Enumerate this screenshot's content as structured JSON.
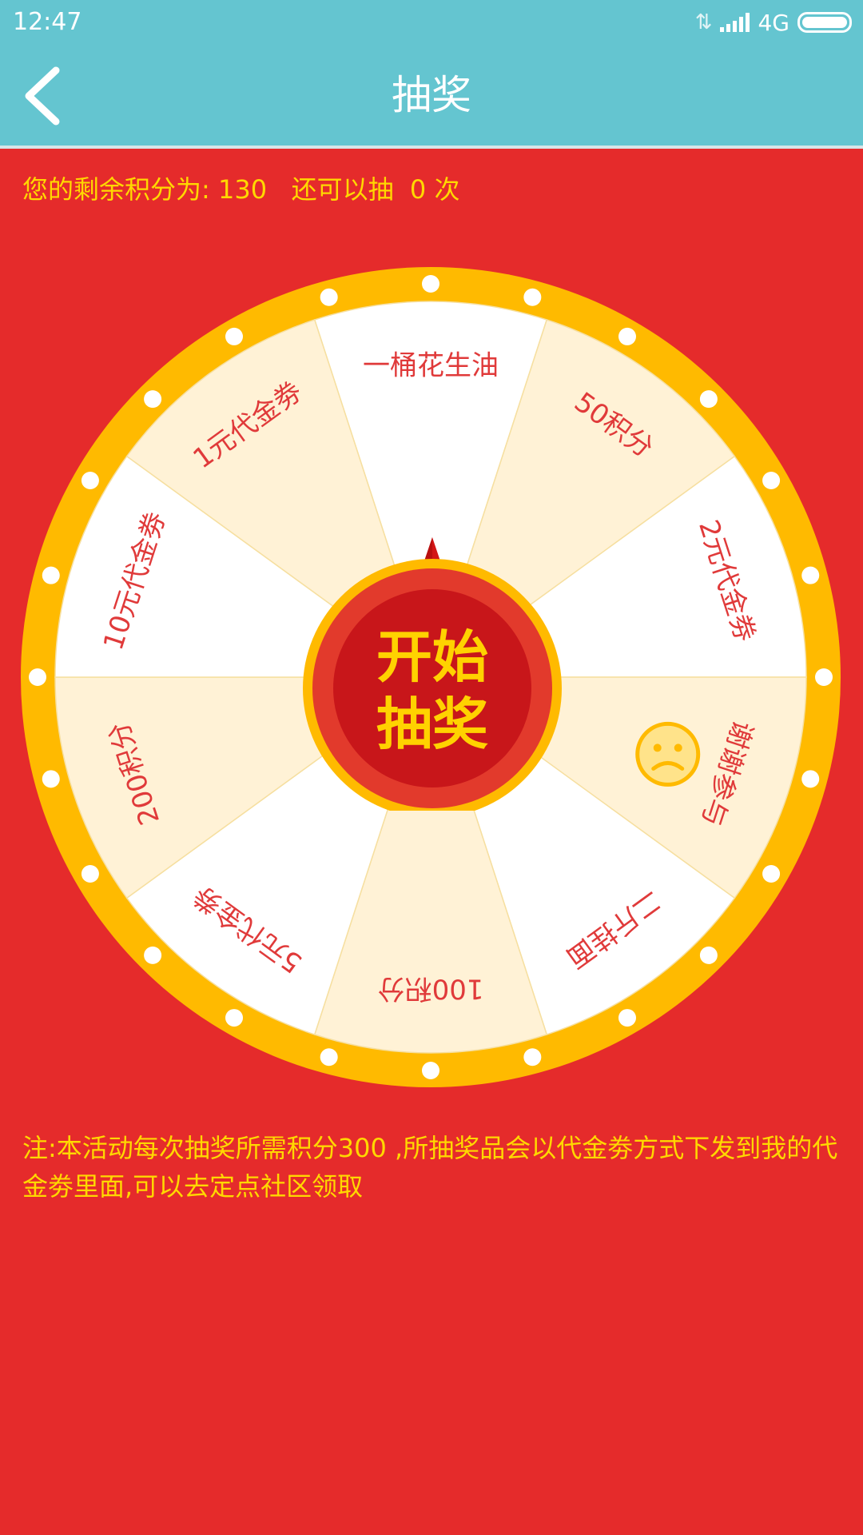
{
  "status_bar": {
    "time": "12:47",
    "network": "4G"
  },
  "header": {
    "title": "抽奖"
  },
  "score": {
    "label": "您的剩余积分为:",
    "points": "130",
    "draws_label": "还可以抽",
    "draws": "0",
    "draws_unit": "次"
  },
  "wheel": {
    "segments": [
      {
        "label": "一桶花生油"
      },
      {
        "label": "50积分"
      },
      {
        "label": "2元代金劵"
      },
      {
        "label": "谢谢参与"
      },
      {
        "label": "二斤挂面"
      },
      {
        "label": "100积分"
      },
      {
        "label": "5元代金劵"
      },
      {
        "label": "200积分"
      },
      {
        "label": "10元代金劵"
      },
      {
        "label": "1元代金劵"
      }
    ],
    "start_line1": "开始",
    "start_line2": "抽奖"
  },
  "note": "注:本活动每次抽奖所需积分300 ,所抽奖品会以代金劵方式下发到我的代金劵里面,可以去定点社区领取",
  "colors": {
    "header_bg": "#64c5d0",
    "page_bg": "#e52b2b",
    "accent_yellow": "#ffd800",
    "rim": "#ffba00",
    "segment_white": "#ffffff",
    "segment_cream": "#fff2d6",
    "segment_text": "#e03a3a"
  }
}
